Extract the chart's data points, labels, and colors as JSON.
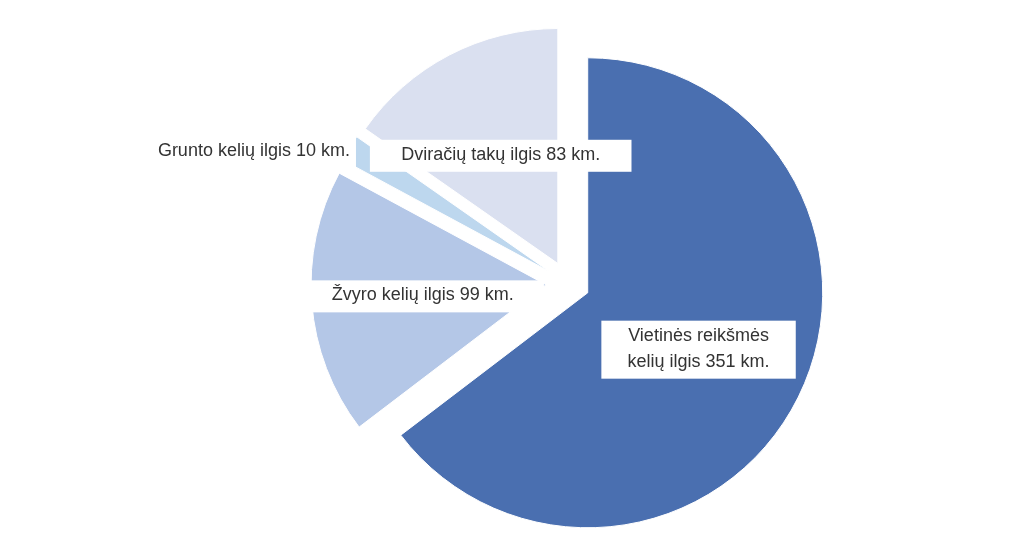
{
  "chart_data": {
    "type": "pie",
    "categories": [
      "Vietinės reikšmės kelių ilgis",
      "Žvyro kelių ilgis",
      "Grunto kelių ilgis",
      "Dviračių takų ilgis"
    ],
    "values": [
      351,
      99,
      10,
      83
    ],
    "value_labels": [
      "351 km.",
      "99 km.",
      "10 km.",
      "83 km."
    ],
    "colors": [
      "#4a6fb0",
      "#b4c7e7",
      "#bdd7ee",
      "#dae0f0"
    ]
  }
}
